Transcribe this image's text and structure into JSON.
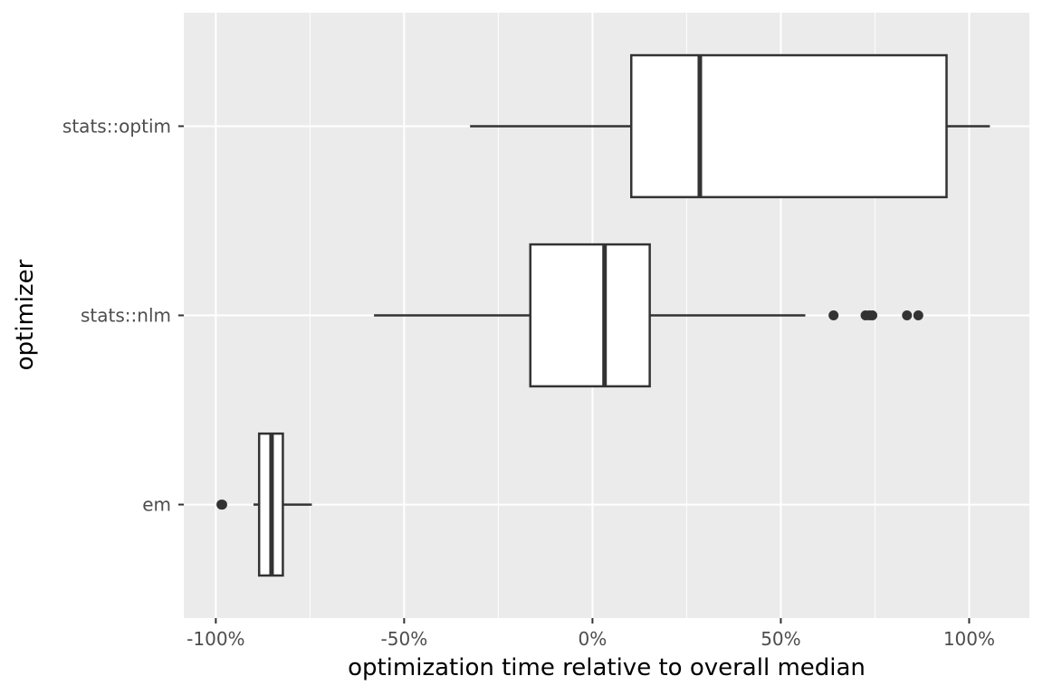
{
  "chart_data": {
    "type": "boxplot",
    "orientation": "horizontal",
    "xlabel": "optimization time relative to overall median",
    "ylabel": "optimizer",
    "xlim": [
      -1.085,
      1.16
    ],
    "x_ticks": [
      -1.0,
      -0.5,
      0.0,
      0.5,
      1.0
    ],
    "x_tick_labels": [
      "-100%",
      "-50%",
      "0%",
      "50%",
      "100%"
    ],
    "categories": [
      "em",
      "stats::nlm",
      "stats::optim"
    ],
    "series": [
      {
        "category": "em",
        "whisker_low": -0.9,
        "q1": -0.885,
        "median": -0.852,
        "q3": -0.822,
        "whisker_high": -0.745,
        "outliers": [
          -0.985,
          -0.983
        ]
      },
      {
        "category": "stats::nlm",
        "whisker_low": -0.58,
        "q1": -0.165,
        "median": 0.032,
        "q3": 0.152,
        "whisker_high": 0.565,
        "outliers": [
          0.64,
          0.725,
          0.735,
          0.743,
          0.835,
          0.865
        ]
      },
      {
        "category": "stats::optim",
        "whisker_low": -0.325,
        "q1": 0.103,
        "median": 0.285,
        "q3": 0.94,
        "whisker_high": 1.055,
        "outliers": []
      }
    ],
    "panel_background": "#ebebeb",
    "grid_color": "#ffffff",
    "box_fill": "#ffffff",
    "box_stroke": "#333333",
    "legend": "none"
  }
}
